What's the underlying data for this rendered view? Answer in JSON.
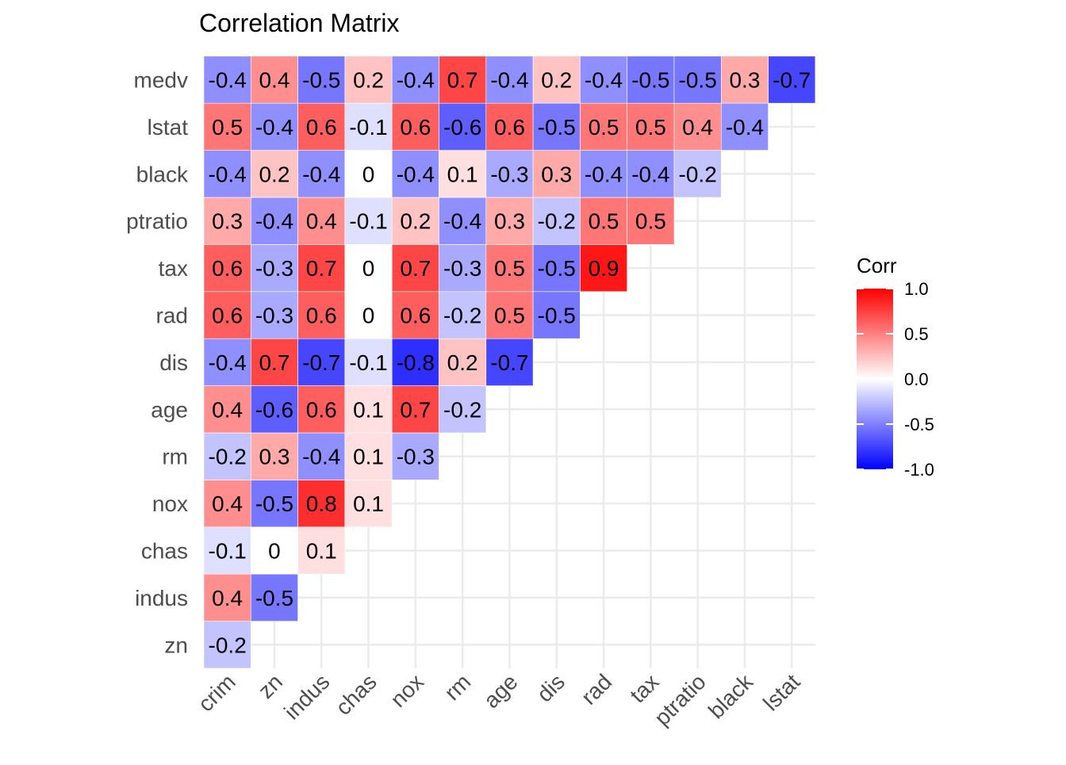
{
  "chart_data": {
    "type": "heatmap",
    "title": "Correlation Matrix",
    "xlabel": "",
    "ylabel": "",
    "x_categories": [
      "crim",
      "zn",
      "indus",
      "chas",
      "nox",
      "rm",
      "age",
      "dis",
      "rad",
      "tax",
      "ptratio",
      "black",
      "lstat"
    ],
    "y_categories": [
      "zn",
      "indus",
      "chas",
      "nox",
      "rm",
      "age",
      "dis",
      "rad",
      "tax",
      "ptratio",
      "black",
      "lstat",
      "medv"
    ],
    "rows": [
      {
        "label": "zn",
        "values": [
          -0.2
        ]
      },
      {
        "label": "indus",
        "values": [
          0.4,
          -0.5
        ]
      },
      {
        "label": "chas",
        "values": [
          -0.1,
          0,
          0.1
        ]
      },
      {
        "label": "nox",
        "values": [
          0.4,
          -0.5,
          0.8,
          0.1
        ]
      },
      {
        "label": "rm",
        "values": [
          -0.2,
          0.3,
          -0.4,
          0.1,
          -0.3
        ]
      },
      {
        "label": "age",
        "values": [
          0.4,
          -0.6,
          0.6,
          0.1,
          0.7,
          -0.2
        ]
      },
      {
        "label": "dis",
        "values": [
          -0.4,
          0.7,
          -0.7,
          -0.1,
          -0.8,
          0.2,
          -0.7
        ]
      },
      {
        "label": "rad",
        "values": [
          0.6,
          -0.3,
          0.6,
          0,
          0.6,
          -0.2,
          0.5,
          -0.5
        ]
      },
      {
        "label": "tax",
        "values": [
          0.6,
          -0.3,
          0.7,
          0,
          0.7,
          -0.3,
          0.5,
          -0.5,
          0.9
        ]
      },
      {
        "label": "ptratio",
        "values": [
          0.3,
          -0.4,
          0.4,
          -0.1,
          0.2,
          -0.4,
          0.3,
          -0.2,
          0.5,
          0.5
        ]
      },
      {
        "label": "black",
        "values": [
          -0.4,
          0.2,
          -0.4,
          0,
          -0.4,
          0.1,
          -0.3,
          0.3,
          -0.4,
          -0.4,
          -0.2
        ]
      },
      {
        "label": "lstat",
        "values": [
          0.5,
          -0.4,
          0.6,
          -0.1,
          0.6,
          -0.6,
          0.6,
          -0.5,
          0.5,
          0.5,
          0.4,
          -0.4
        ]
      },
      {
        "label": "medv",
        "values": [
          -0.4,
          0.4,
          -0.5,
          0.2,
          -0.4,
          0.7,
          -0.4,
          0.2,
          -0.4,
          -0.5,
          -0.5,
          0.3,
          -0.7
        ]
      }
    ],
    "legend": {
      "title": "Corr",
      "ticks": [
        "1.0",
        "0.5",
        "0.0",
        "-0.5",
        "-1.0"
      ],
      "limits": [
        -1,
        1
      ],
      "position": "right"
    },
    "colors": {
      "low": "#0000FF",
      "mid": "#FFFFFF",
      "high": "#FF0000"
    },
    "grid": true
  }
}
